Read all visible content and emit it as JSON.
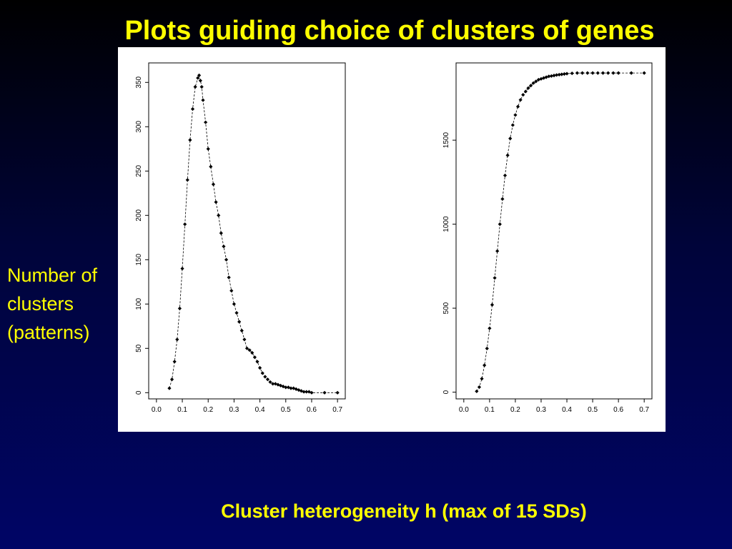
{
  "slide": {
    "title": "Plots guiding choice of clusters of genes",
    "y_caption_lines": [
      "Number of",
      "clusters",
      "(patterns)"
    ],
    "x_caption": "Cluster heterogeneity h (max of 15 SDs)"
  },
  "colors": {
    "background_top": "#000000",
    "background_bottom": "#000566",
    "text": "#ffff00",
    "panel": "#ffffff",
    "points": "#000000"
  },
  "chart_data": [
    {
      "type": "scatter",
      "title": "",
      "xlabel": "",
      "ylabel": "",
      "xlim": [
        -0.03,
        0.73
      ],
      "ylim": [
        -7,
        372
      ],
      "xticks": [
        "0.0",
        "0.1",
        "0.2",
        "0.3",
        "0.4",
        "0.5",
        "0.6",
        "0.7"
      ],
      "yticks": [
        "0",
        "50",
        "100",
        "150",
        "200",
        "250",
        "300",
        "350"
      ],
      "series": [
        {
          "x": [
            0.05,
            0.06,
            0.07,
            0.08,
            0.09,
            0.1,
            0.11,
            0.12,
            0.13,
            0.14,
            0.15,
            0.16,
            0.165,
            0.17,
            0.175,
            0.18,
            0.19,
            0.2,
            0.21,
            0.22,
            0.23,
            0.24,
            0.25,
            0.26,
            0.27,
            0.28,
            0.29,
            0.3,
            0.31,
            0.32,
            0.33,
            0.34,
            0.35,
            0.36,
            0.37,
            0.38,
            0.39,
            0.4,
            0.41,
            0.42,
            0.43,
            0.44,
            0.45,
            0.46,
            0.47,
            0.48,
            0.49,
            0.5,
            0.51,
            0.52,
            0.53,
            0.54,
            0.55,
            0.56,
            0.57,
            0.58,
            0.59,
            0.6,
            0.65,
            0.7
          ],
          "y": [
            5,
            15,
            35,
            60,
            95,
            140,
            190,
            240,
            285,
            320,
            345,
            355,
            358,
            352,
            345,
            330,
            305,
            275,
            255,
            235,
            215,
            200,
            180,
            165,
            150,
            130,
            115,
            100,
            90,
            80,
            70,
            60,
            50,
            48,
            45,
            40,
            35,
            28,
            22,
            18,
            15,
            12,
            10,
            10,
            9,
            8,
            7,
            6,
            6,
            5,
            5,
            4,
            3,
            2,
            1,
            1,
            1,
            0,
            0,
            0
          ]
        }
      ]
    },
    {
      "type": "scatter",
      "title": "",
      "xlabel": "",
      "ylabel": "",
      "xlim": [
        -0.03,
        0.73
      ],
      "ylim": [
        -40,
        1960
      ],
      "xticks": [
        "0.0",
        "0.1",
        "0.2",
        "0.3",
        "0.4",
        "0.5",
        "0.6",
        "0.7"
      ],
      "yticks": [
        "0",
        "500",
        "1000",
        "1500"
      ],
      "series": [
        {
          "x": [
            0.05,
            0.06,
            0.07,
            0.08,
            0.09,
            0.1,
            0.11,
            0.12,
            0.13,
            0.14,
            0.15,
            0.16,
            0.17,
            0.18,
            0.19,
            0.2,
            0.21,
            0.22,
            0.23,
            0.24,
            0.25,
            0.26,
            0.27,
            0.28,
            0.29,
            0.3,
            0.31,
            0.32,
            0.33,
            0.34,
            0.35,
            0.36,
            0.37,
            0.38,
            0.39,
            0.4,
            0.42,
            0.44,
            0.46,
            0.48,
            0.5,
            0.52,
            0.54,
            0.56,
            0.58,
            0.6,
            0.65,
            0.7
          ],
          "y": [
            5,
            30,
            80,
            160,
            260,
            380,
            520,
            680,
            840,
            1000,
            1150,
            1290,
            1410,
            1510,
            1590,
            1650,
            1700,
            1740,
            1770,
            1790,
            1810,
            1825,
            1840,
            1850,
            1860,
            1865,
            1870,
            1875,
            1880,
            1882,
            1885,
            1888,
            1890,
            1892,
            1894,
            1896,
            1898,
            1900,
            1900,
            1900,
            1900,
            1900,
            1900,
            1900,
            1900,
            1900,
            1900,
            1900
          ]
        }
      ]
    }
  ]
}
